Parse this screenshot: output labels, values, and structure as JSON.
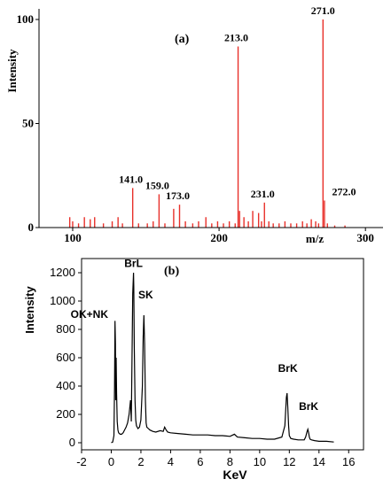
{
  "chart_data": [
    {
      "type": "bar",
      "panel_label": "(a)",
      "xlabel": "m/z",
      "ylabel": "Intensity",
      "xlim": [
        77,
        312
      ],
      "ylim": [
        0,
        100
      ],
      "x_ticks": [
        100,
        200,
        300
      ],
      "y_ticks": [
        0,
        50,
        100
      ],
      "color": "#e8302a",
      "peaks": [
        {
          "x": 98,
          "y": 5
        },
        {
          "x": 100,
          "y": 3
        },
        {
          "x": 104,
          "y": 2
        },
        {
          "x": 108,
          "y": 5
        },
        {
          "x": 112,
          "y": 4
        },
        {
          "x": 115,
          "y": 5
        },
        {
          "x": 121,
          "y": 2
        },
        {
          "x": 127,
          "y": 3
        },
        {
          "x": 131,
          "y": 5
        },
        {
          "x": 134,
          "y": 2
        },
        {
          "x": 141,
          "y": 19
        },
        {
          "x": 145,
          "y": 2
        },
        {
          "x": 151,
          "y": 2
        },
        {
          "x": 155,
          "y": 3
        },
        {
          "x": 159,
          "y": 16
        },
        {
          "x": 163,
          "y": 2
        },
        {
          "x": 169,
          "y": 9
        },
        {
          "x": 173,
          "y": 11
        },
        {
          "x": 177,
          "y": 3
        },
        {
          "x": 182,
          "y": 2
        },
        {
          "x": 186,
          "y": 3
        },
        {
          "x": 191,
          "y": 5
        },
        {
          "x": 195,
          "y": 2
        },
        {
          "x": 199,
          "y": 3
        },
        {
          "x": 203,
          "y": 2
        },
        {
          "x": 207,
          "y": 3
        },
        {
          "x": 211,
          "y": 2
        },
        {
          "x": 213,
          "y": 87
        },
        {
          "x": 214,
          "y": 8
        },
        {
          "x": 217,
          "y": 5
        },
        {
          "x": 220,
          "y": 3
        },
        {
          "x": 223,
          "y": 8
        },
        {
          "x": 227,
          "y": 7
        },
        {
          "x": 229,
          "y": 3
        },
        {
          "x": 231,
          "y": 12
        },
        {
          "x": 234,
          "y": 3
        },
        {
          "x": 237,
          "y": 2
        },
        {
          "x": 241,
          "y": 2
        },
        {
          "x": 245,
          "y": 3
        },
        {
          "x": 249,
          "y": 2
        },
        {
          "x": 253,
          "y": 2
        },
        {
          "x": 257,
          "y": 3
        },
        {
          "x": 260,
          "y": 2
        },
        {
          "x": 263,
          "y": 4
        },
        {
          "x": 266,
          "y": 3
        },
        {
          "x": 268,
          "y": 2
        },
        {
          "x": 271,
          "y": 100
        },
        {
          "x": 272,
          "y": 13
        },
        {
          "x": 274,
          "y": 2
        },
        {
          "x": 279,
          "y": 1
        },
        {
          "x": 286,
          "y": 1
        }
      ],
      "peak_labels": [
        {
          "x": 141,
          "y": 19,
          "text": "141.0"
        },
        {
          "x": 159,
          "y": 16,
          "text": "159.0"
        },
        {
          "x": 173,
          "y": 11,
          "text": "173.0"
        },
        {
          "x": 213,
          "y": 87,
          "text": "213.0"
        },
        {
          "x": 231,
          "y": 12,
          "text": "231.0"
        },
        {
          "x": 271,
          "y": 100,
          "text": "271.0"
        },
        {
          "x": 272,
          "y": 13,
          "text": "272.0"
        }
      ]
    },
    {
      "type": "line",
      "panel_label": "(b)",
      "xlabel": "KeV",
      "ylabel": "Intensity",
      "xlim": [
        -2,
        17
      ],
      "ylim": [
        -50,
        1300
      ],
      "x_ticks": [
        -2,
        0,
        2,
        4,
        6,
        8,
        10,
        12,
        14,
        16
      ],
      "y_ticks": [
        0,
        200,
        400,
        600,
        800,
        1000,
        1200
      ],
      "color": "#000000",
      "series": [
        {
          "x": [
            0,
            0.1,
            0.18,
            0.22,
            0.25,
            0.28,
            0.3,
            0.33,
            0.36,
            0.4,
            0.45,
            0.5,
            0.6,
            0.7,
            0.8,
            0.9,
            1.0,
            1.1,
            1.2,
            1.3,
            1.35,
            1.4,
            1.45,
            1.5,
            1.52,
            1.55,
            1.6,
            1.65,
            1.7,
            1.8,
            1.9,
            2.0,
            2.1,
            2.15,
            2.2,
            2.25,
            2.3,
            2.35,
            2.4,
            2.5,
            2.6,
            2.8,
            3.0,
            3.3,
            3.5,
            3.6,
            3.7,
            3.8,
            4.0,
            4.5,
            5.0,
            5.5,
            6.0,
            6.5,
            7.0,
            7.5,
            8.0,
            8.3,
            8.5,
            9.0,
            9.5,
            10.0,
            10.5,
            11.0,
            11.5,
            11.7,
            11.8,
            11.85,
            11.9,
            11.95,
            12.0,
            12.1,
            12.3,
            12.6,
            13.0,
            13.1,
            13.2,
            13.25,
            13.3,
            13.35,
            13.4,
            13.5,
            13.7,
            14.0,
            14.5,
            15.0
          ],
          "y": [
            0,
            5,
            50,
            400,
            860,
            700,
            300,
            600,
            350,
            150,
            90,
            70,
            60,
            60,
            70,
            90,
            110,
            140,
            200,
            300,
            150,
            600,
            1050,
            1200,
            1100,
            700,
            300,
            160,
            120,
            100,
            110,
            160,
            400,
            750,
            900,
            700,
            300,
            140,
            110,
            100,
            90,
            80,
            75,
            85,
            80,
            110,
            90,
            75,
            70,
            65,
            60,
            55,
            55,
            55,
            50,
            50,
            45,
            60,
            40,
            35,
            30,
            30,
            25,
            25,
            40,
            120,
            320,
            350,
            250,
            120,
            50,
            30,
            25,
            20,
            20,
            40,
            80,
            95,
            70,
            40,
            25,
            20,
            15,
            10,
            10,
            5
          ]
        }
      ],
      "annotations": [
        {
          "text": "OK+NK",
          "x": 0.2
        },
        {
          "text": "BrL",
          "x": 1.5
        },
        {
          "text": "SK",
          "x": 2.2
        },
        {
          "text": "BrK",
          "x": 11.9
        },
        {
          "text": "BrK",
          "x": 13.3
        }
      ]
    }
  ]
}
